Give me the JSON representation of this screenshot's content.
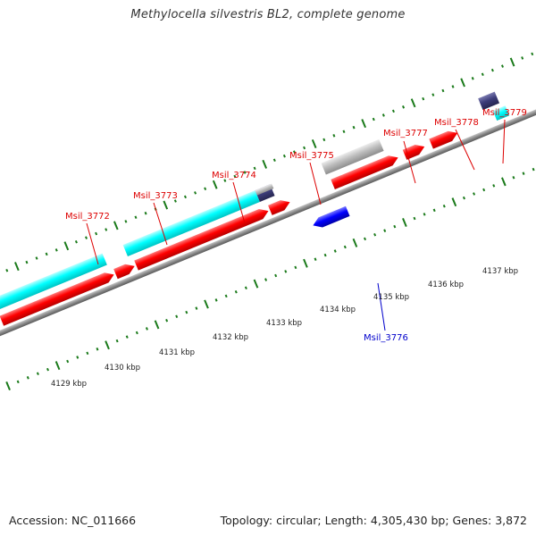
{
  "title": "Methylocella silvestris BL2, complete genome",
  "footer": {
    "accession": "Accession: NC_011666",
    "summary": "Topology: circular; Length: 4,305,430 bp; Genes: 3,872"
  },
  "colors": {
    "forward_cds": "#ff0000",
    "reverse_cds": "#0000ff",
    "cyan_feature": "#00ffff",
    "navy_feature": "#3d3d7a",
    "gray_feature": "#bbbbbb",
    "backbone": "#888888",
    "ticks": "#1a7a1a"
  },
  "scale_labels": [
    "4129 kbp",
    "4130 kbp",
    "4131 kbp",
    "4132 kbp",
    "4133 kbp",
    "4134 kbp",
    "4135 kbp",
    "4136 kbp",
    "4137 kbp"
  ],
  "gene_labels": {
    "g3772": "Msil_3772",
    "g3773": "Msil_3773",
    "g3774": "Msil_3774",
    "g3775": "Msil_3775",
    "g3776": "Msil_3776",
    "g3777": "Msil_3777",
    "g3778": "Msil_3778",
    "g3779": "Msil_3779"
  }
}
